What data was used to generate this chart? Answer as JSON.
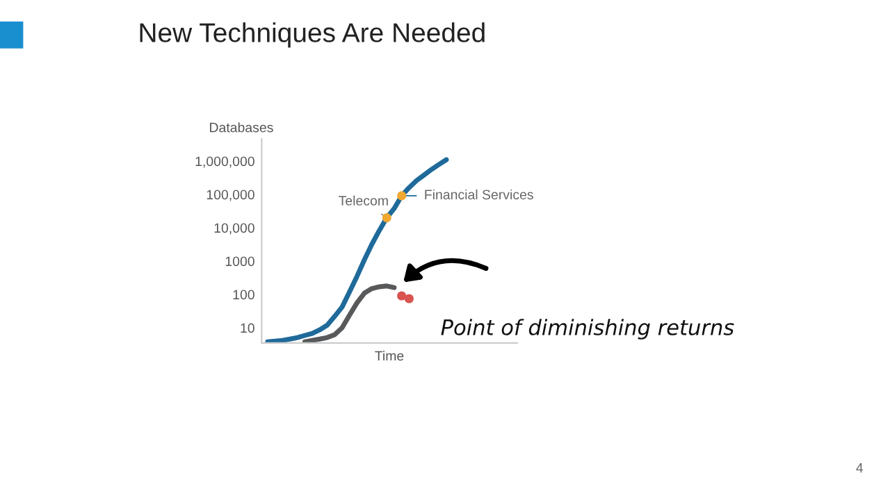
{
  "chart_data": {
    "type": "line",
    "title": "New Techniques Are Needed",
    "ylabel": "Databases",
    "xlabel": "Time",
    "categories": [
      null,
      null,
      null,
      null,
      null,
      null,
      null,
      null,
      null,
      null,
      null,
      null,
      null,
      null,
      null,
      null,
      null,
      null,
      null,
      null,
      null,
      null,
      null,
      null,
      null
    ],
    "series": [
      {
        "color": "#1f6a9a",
        "values": [
          3.8,
          4.0,
          4.2,
          4.6,
          5.1,
          5.9,
          6.8,
          8.7,
          12,
          22,
          42,
          120,
          350,
          1100,
          3200,
          8300,
          20000,
          38000,
          91000,
          160000,
          260000,
          380000,
          560000,
          790000,
          1100000
        ]
      },
      {
        "color": "#58595b",
        "values": [
          null,
          null,
          null,
          null,
          null,
          3.8,
          4.2,
          4.6,
          5.1,
          6.2,
          10,
          24,
          56,
          110,
          150,
          170,
          180,
          160,
          null,
          null,
          null,
          null,
          null,
          null,
          null
        ]
      },
      {
        "type": "scatter",
        "color": "#d9534f",
        "values": [
          null,
          null,
          null,
          null,
          null,
          null,
          null,
          null,
          null,
          null,
          null,
          null,
          null,
          null,
          null,
          null,
          null,
          null,
          91,
          75,
          null,
          null,
          null,
          null,
          null
        ]
      },
      {
        "type": "scatter",
        "color": "#f0a830",
        "values": [
          null,
          null,
          null,
          null,
          null,
          null,
          null,
          null,
          null,
          null,
          null,
          null,
          null,
          null,
          null,
          null,
          20000,
          null,
          91000,
          null,
          null,
          null,
          null,
          null,
          null
        ]
      }
    ],
    "ylim": [
      3.5,
      4600000
    ],
    "yticks": [
      10,
      100,
      1000,
      {
        "value": 10000,
        "label": "10,000"
      },
      {
        "value": 100000,
        "label": "100,000"
      },
      {
        "value": 1000000,
        "label": "1,000,000"
      }
    ],
    "log": "y",
    "grid": false,
    "tick_labels": "y",
    "annotations": [
      "Telecom",
      "Financial Services",
      "Point of diminishing returns",
      "4"
    ]
  }
}
